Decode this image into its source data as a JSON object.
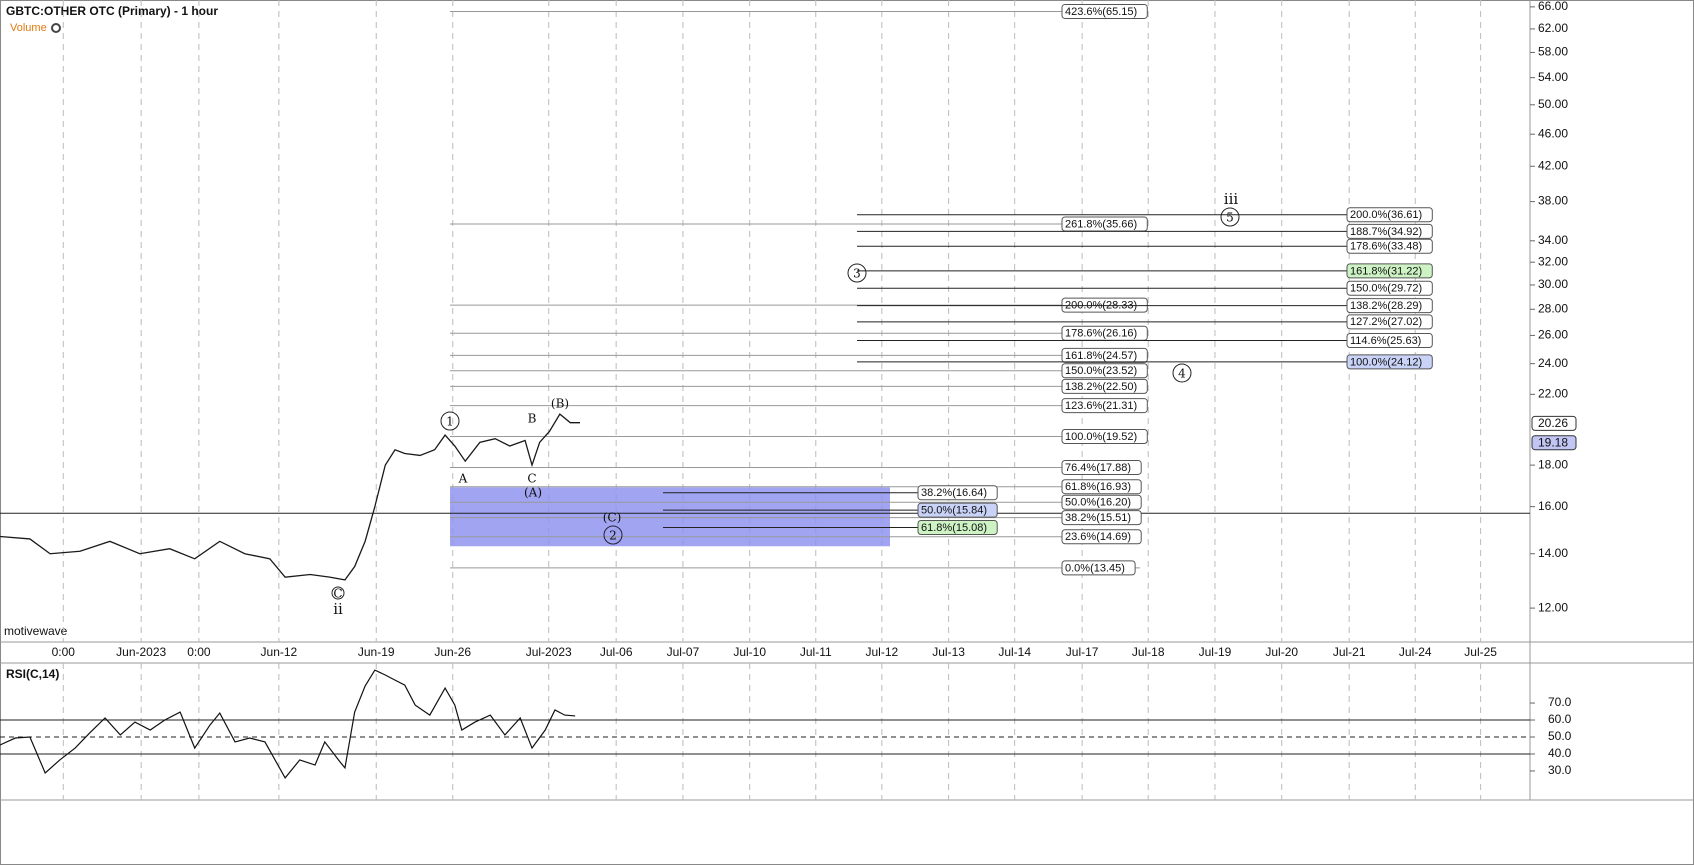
{
  "chart_data": {
    "type": "line",
    "title": "GBTC:OTHER OTC (Primary) - 1 hour",
    "indicator_label": "Volume",
    "watermark": "motivewave",
    "color": "#1a1a1a",
    "log_scale": true,
    "grid": true,
    "xlim": [
      0,
      220
    ],
    "xticks": [
      {
        "value": 9.1,
        "label": "0:00"
      },
      {
        "value": 20.3,
        "label": "Jun-2023"
      },
      {
        "value": 28.6,
        "label": "0:00"
      },
      {
        "value": 40.1,
        "label": "Jun-12"
      },
      {
        "value": 54.1,
        "label": "Jun-19"
      },
      {
        "value": 65.1,
        "label": "Jun-26"
      },
      {
        "value": 78.9,
        "label": "Jul-2023"
      },
      {
        "value": 88.6,
        "label": "Jul-06"
      },
      {
        "value": 98.2,
        "label": "Jul-07"
      },
      {
        "value": 107.8,
        "label": "Jul-10"
      },
      {
        "value": 117.3,
        "label": "Jul-11"
      },
      {
        "value": 126.8,
        "label": "Jul-12"
      },
      {
        "value": 136.4,
        "label": "Jul-13"
      },
      {
        "value": 145.9,
        "label": "Jul-14"
      },
      {
        "value": 155.6,
        "label": "Jul-17"
      },
      {
        "value": 165.1,
        "label": "Jul-18"
      },
      {
        "value": 174.7,
        "label": "Jul-19"
      },
      {
        "value": 184.3,
        "label": "Jul-20"
      },
      {
        "value": 194,
        "label": "Jul-21"
      },
      {
        "value": 203.5,
        "label": "Jul-24"
      },
      {
        "value": 212.9,
        "label": "Jul-25"
      }
    ],
    "ylim": [
      10.9,
      67.3
    ],
    "yticks": [
      {
        "value": 12,
        "label": "12.00"
      },
      {
        "value": 14,
        "label": "14.00"
      },
      {
        "value": 16,
        "label": "16.00"
      },
      {
        "value": 18,
        "label": "18.00"
      },
      {
        "value": 22,
        "label": "22.00"
      },
      {
        "value": 24,
        "label": "24.00"
      },
      {
        "value": 26,
        "label": "26.00"
      },
      {
        "value": 28,
        "label": "28.00"
      },
      {
        "value": 30,
        "label": "30.00"
      },
      {
        "value": 32,
        "label": "32.00"
      },
      {
        "value": 34,
        "label": "34.00"
      },
      {
        "value": 38,
        "label": "38.00"
      },
      {
        "value": 42,
        "label": "42.00"
      },
      {
        "value": 46,
        "label": "46.00"
      },
      {
        "value": 50,
        "label": "50.00"
      },
      {
        "value": 54,
        "label": "54.00"
      },
      {
        "value": 58,
        "label": "58.00"
      },
      {
        "value": 62,
        "label": "62.00"
      },
      {
        "value": 66,
        "label": "66.00"
      }
    ],
    "x": [
      0,
      4.3,
      7.2,
      11.5,
      15.8,
      20.1,
      24.4,
      28,
      31.6,
      35.2,
      38.8,
      41,
      44.6,
      47.4,
      49.6,
      51,
      52.5,
      53.9,
      55.4,
      56.8,
      58.2,
      60.4,
      62.5,
      64,
      65.4,
      66.9,
      69,
      71.2,
      73.3,
      75.5,
      76.5,
      77.6,
      79,
      80.5,
      82,
      83.4
    ],
    "series": [
      {
        "name": "GBTC",
        "color": "#1a1a1a",
        "values": [
          14.7,
          14.6,
          14.0,
          14.1,
          14.5,
          14.0,
          14.2,
          13.8,
          14.5,
          14.0,
          13.8,
          13.1,
          13.2,
          13.1,
          13.0,
          13.5,
          14.5,
          16.0,
          18.0,
          18.8,
          18.6,
          18.5,
          18.8,
          19.6,
          19.0,
          18.2,
          19.2,
          19.4,
          19.0,
          19.3,
          18.0,
          19.2,
          19.8,
          20.8,
          20.3,
          20.3
        ]
      }
    ],
    "price_badges": [
      {
        "value": 20.26,
        "label": "20.26"
      },
      {
        "value": 19.18,
        "label": "19.18"
      }
    ],
    "horizontal_line": 15.7,
    "zone": [
      14.3,
      16.9
    ],
    "left_fibs": [
      {
        "value": 65.15,
        "label": "423.6%(65.15)"
      },
      {
        "value": 35.66,
        "label": "261.8%(35.66)"
      },
      {
        "value": 28.33,
        "label": "200.0%(28.33)"
      },
      {
        "value": 26.16,
        "label": "178.6%(26.16)"
      },
      {
        "value": 24.57,
        "label": "161.8%(24.57)"
      },
      {
        "value": 23.52,
        "label": "150.0%(23.52)"
      },
      {
        "value": 22.5,
        "label": "138.2%(22.50)"
      },
      {
        "value": 21.31,
        "label": "123.6%(21.31)"
      },
      {
        "value": 19.52,
        "label": "100.0%(19.52)"
      },
      {
        "value": 17.88,
        "label": "76.4%(17.88)"
      },
      {
        "value": 16.93,
        "label": "61.8%(16.93)"
      },
      {
        "value": 16.2,
        "label": "50.0%(16.20)"
      },
      {
        "value": 15.51,
        "label": "38.2%(15.51)"
      },
      {
        "value": 14.69,
        "label": "23.6%(14.69)"
      },
      {
        "value": 13.45,
        "label": "0.0%(13.45)"
      }
    ],
    "mid_fibs": [
      {
        "value": 16.64,
        "label": "38.2%(16.64)"
      },
      {
        "value": 15.84,
        "label": "50.0%(15.84)",
        "color": "#c9d3f7"
      },
      {
        "value": 15.08,
        "label": "61.8%(15.08)",
        "color": "#cdf2c4"
      }
    ],
    "right_fibs": [
      {
        "value": 36.61,
        "label": "200.0%(36.61)"
      },
      {
        "value": 34.92,
        "label": "188.7%(34.92)"
      },
      {
        "value": 33.48,
        "label": "178.6%(33.48)"
      },
      {
        "value": 31.22,
        "label": "161.8%(31.22)",
        "color": "#cdf2c4"
      },
      {
        "value": 29.72,
        "label": "150.0%(29.72)"
      },
      {
        "value": 28.29,
        "label": "138.2%(28.29)"
      },
      {
        "value": 27.02,
        "label": "127.2%(27.02)"
      },
      {
        "value": 25.63,
        "label": "114.6%(25.63)"
      },
      {
        "value": 24.12,
        "label": "100.0%(24.12)",
        "color": "#c9d3f7"
      }
    ],
    "wave_labels": [
      "1",
      "A",
      "B",
      "C",
      "(A)",
      "(B)",
      "(C)",
      "2",
      "3",
      "4",
      "5",
      "iii",
      "C",
      "ii"
    ],
    "rsi": {
      "label": "RSI(C,14)",
      "ylim": [
        12.9,
        92.4
      ],
      "yticks": [
        {
          "value": 30,
          "label": "30.0"
        },
        {
          "value": 40,
          "label": "40.0"
        },
        {
          "value": 50,
          "label": "50.0"
        },
        {
          "value": 60,
          "label": "60.0"
        },
        {
          "value": 70,
          "label": "70.0"
        }
      ],
      "levels": [
        40,
        50,
        60
      ],
      "x": [
        0,
        2.2,
        4.3,
        6.5,
        8.6,
        10.8,
        12.9,
        15.1,
        17.3,
        19.4,
        21.6,
        23.7,
        25.9,
        28,
        30.2,
        31.6,
        33.8,
        35.9,
        38.1,
        41,
        43.1,
        45.3,
        46.7,
        48.9,
        49.6,
        51,
        52.5,
        53.9,
        55.4,
        56.8,
        58.2,
        59.7,
        61.8,
        64,
        65.4,
        66.4,
        68.3,
        70.5,
        72.6,
        74.8,
        76.5,
        78.4,
        79.8,
        81.2,
        82.7
      ],
      "values": [
        45.3,
        49.4,
        50,
        28.8,
        36.5,
        43.5,
        52.4,
        61.2,
        51.2,
        58.8,
        54.1,
        60,
        64.7,
        43.5,
        57.1,
        64.1,
        47.1,
        49.4,
        47.1,
        25.9,
        36.5,
        33.5,
        47.1,
        35.3,
        31.8,
        64.7,
        80,
        89.4,
        86.5,
        83.5,
        80.6,
        68.8,
        62.9,
        78.8,
        68.8,
        54.1,
        58.8,
        62.9,
        51.2,
        61.2,
        43.5,
        54.1,
        65.9,
        62.9,
        62.4
      ]
    }
  }
}
